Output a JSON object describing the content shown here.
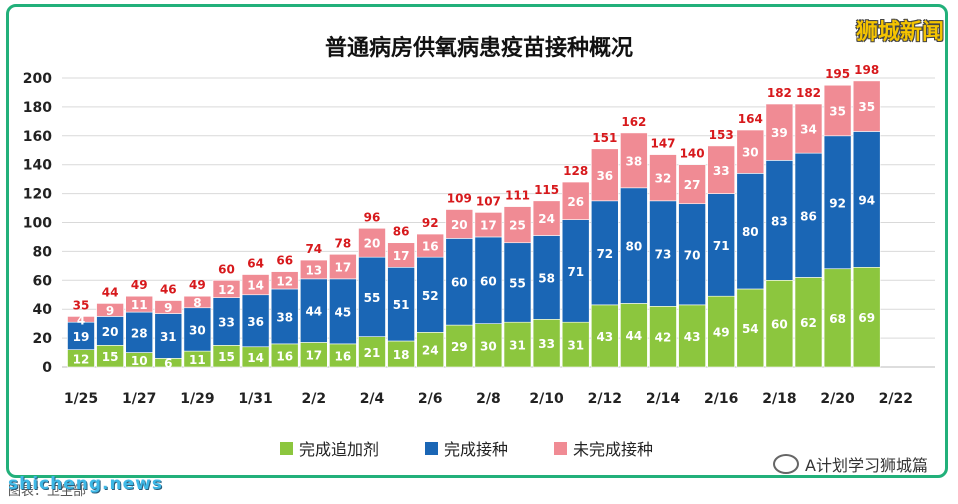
{
  "title": "普通病房供氧病患疫苗接种概况",
  "brand": "狮城新闻",
  "legend": {
    "booster": "完成追加剂",
    "full": "完成接种",
    "incomplete": "未完成接种"
  },
  "watermark_left": "shicheng.news",
  "watermark_source": "图表：卫生部",
  "watermark_right": "A计划学习狮城篇",
  "colors": {
    "booster": "#8cc63e",
    "full": "#1a66b5",
    "incomplete": "#f08b94",
    "total_label": "#d7191c"
  },
  "chart_data": {
    "type": "bar",
    "stacked": true,
    "title": "普通病房供氧病患疫苗接种概况",
    "ylim": [
      0,
      200
    ],
    "yticks": [
      0,
      20,
      40,
      60,
      80,
      100,
      120,
      140,
      160,
      180,
      200
    ],
    "grid": true,
    "legend_position": "bottom",
    "x_tick_labels": [
      "1/25",
      "1/27",
      "1/29",
      "1/31",
      "2/2",
      "2/4",
      "2/6",
      "2/8",
      "2/10",
      "2/12",
      "2/14",
      "2/16",
      "2/18",
      "2/20",
      "2/22"
    ],
    "categories": [
      "1/25",
      "1/26",
      "1/27",
      "1/28",
      "1/29",
      "1/30",
      "1/31",
      "2/1",
      "2/2",
      "2/3",
      "2/4",
      "2/5",
      "2/6",
      "2/7",
      "2/8",
      "2/9",
      "2/10",
      "2/11",
      "2/12",
      "2/13",
      "2/14",
      "2/15",
      "2/16",
      "2/17",
      "2/18",
      "2/19",
      "2/20",
      "2/21"
    ],
    "series": [
      {
        "name": "完成追加剂",
        "values": [
          12,
          15,
          10,
          6,
          11,
          15,
          14,
          16,
          17,
          16,
          21,
          18,
          24,
          29,
          30,
          31,
          33,
          31,
          43,
          44,
          42,
          43,
          49,
          54,
          60,
          62,
          68,
          69
        ]
      },
      {
        "name": "完成接种",
        "values": [
          19,
          20,
          28,
          31,
          30,
          33,
          36,
          38,
          44,
          45,
          55,
          51,
          52,
          60,
          60,
          55,
          58,
          71,
          72,
          80,
          73,
          70,
          71,
          80,
          83,
          86,
          92,
          94
        ]
      },
      {
        "name": "未完成接种",
        "values": [
          4,
          9,
          11,
          9,
          8,
          12,
          14,
          12,
          13,
          17,
          20,
          17,
          16,
          20,
          17,
          25,
          24,
          26,
          36,
          38,
          32,
          27,
          33,
          30,
          39,
          34,
          35,
          35
        ]
      }
    ],
    "totals": [
      35,
      44,
      49,
      46,
      49,
      60,
      64,
      66,
      74,
      78,
      96,
      86,
      92,
      109,
      107,
      111,
      115,
      128,
      151,
      162,
      147,
      140,
      153,
      164,
      182,
      182,
      195,
      198
    ]
  }
}
